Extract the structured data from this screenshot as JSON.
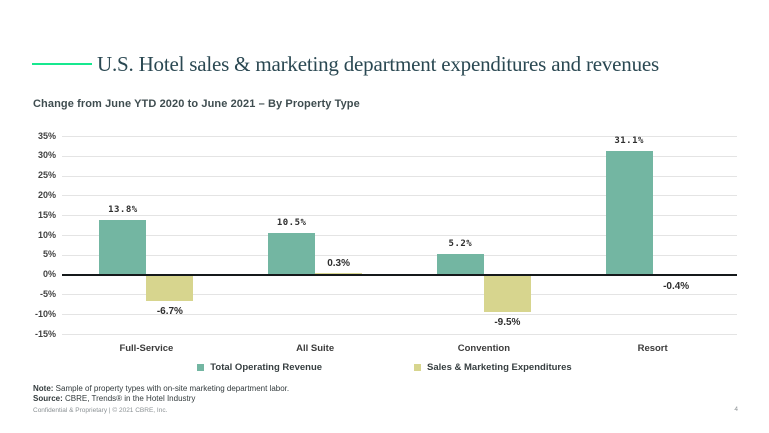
{
  "page": {
    "title": "U.S. Hotel sales & marketing department expenditures and revenues",
    "subtitle": "Change from June YTD 2020 to June 2021 – By Property Type",
    "page_number": "4"
  },
  "footer": {
    "note_label": "Note:",
    "note_text": " Sample of property types with on-site marketing department labor.",
    "source_label": "Source:",
    "source_text": " CBRE, Trends® in the Hotel Industry",
    "confidential": "Confidential & Proprietary | © 2021 CBRE, Inc."
  },
  "colors": {
    "accent_green": "#17E88F",
    "revenue_bar": "#73B6A2",
    "expense_bar": "#D7D58E",
    "title_color": "#2A4852",
    "gridline": "#E4E4E4",
    "zero_line": "#15191B"
  },
  "chart_data": {
    "type": "bar",
    "title": "Change from June YTD 2020 to June 2021 – By Property Type",
    "categories": [
      "Full-Service",
      "All Suite",
      "Convention",
      "Resort"
    ],
    "series": [
      {
        "name": "Total Operating Revenue",
        "color": "#73B6A2",
        "values": [
          13.8,
          10.5,
          5.2,
          31.1
        ],
        "labels": [
          "13.8%",
          "10.5%",
          "5.2%",
          "31.1%"
        ]
      },
      {
        "name": "Sales & Marketing Expenditures",
        "color": "#D7D58E",
        "values": [
          -6.7,
          0.3,
          -9.5,
          -0.4
        ],
        "labels": [
          "-6.7%",
          "0.3%",
          "-9.5%",
          "-0.4%"
        ]
      }
    ],
    "xlabel": "",
    "ylabel": "",
    "ylim": [
      -15,
      35
    ],
    "ytick_step": 5,
    "ytick_labels": [
      "35%",
      "30%",
      "25%",
      "20%",
      "15%",
      "10%",
      "5%",
      "0%",
      "-5%",
      "-10%",
      "-15%"
    ],
    "grid": true,
    "legend_position": "bottom"
  }
}
